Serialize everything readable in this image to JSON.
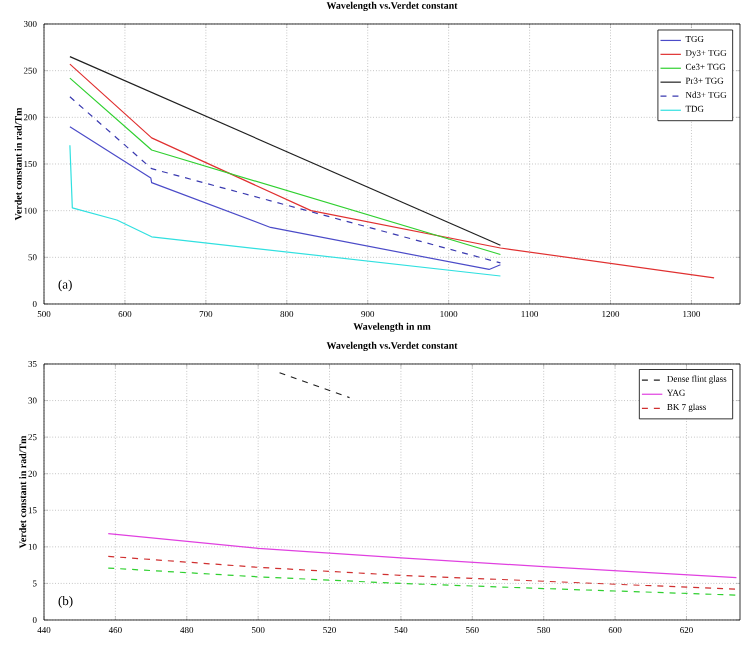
{
  "chart_data": [
    {
      "type": "line",
      "title": "Wavelength vs.Verdet constant",
      "xlabel": "Wavelength in nm",
      "ylabel": "Verdet constant in rad/Tm",
      "annotations": [
        "(a)"
      ],
      "xlim": [
        500,
        1360
      ],
      "ylim": [
        0,
        300
      ],
      "xticks": [
        500,
        600,
        700,
        800,
        900,
        1000,
        1100,
        1200,
        1300
      ],
      "yticks": [
        0,
        50,
        100,
        150,
        200,
        250,
        300
      ],
      "grid": true,
      "legend": "top right",
      "marker": "none",
      "series": [
        {
          "name": "TGG",
          "color": "#4b4bc8",
          "line_style": "solid",
          "x": [
            532,
            632,
            633,
            780,
            1050,
            1064
          ],
          "values": [
            190,
            135,
            130,
            82,
            37,
            42
          ]
        },
        {
          "name": "Dy3+ TGG",
          "color": "#e03030",
          "line_style": "solid",
          "x": [
            532,
            633,
            830,
            1064,
            1328
          ],
          "values": [
            257,
            178,
            100,
            60,
            28
          ]
        },
        {
          "name": "Ce3+ TGG",
          "color": "#30d030",
          "line_style": "solid",
          "x": [
            532,
            633,
            1064
          ],
          "values": [
            242,
            165,
            53
          ]
        },
        {
          "name": "Pr3+ TGG",
          "color": "#202020",
          "line_style": "solid",
          "x": [
            532,
            1064
          ],
          "values": [
            265,
            63
          ]
        },
        {
          "name": "Nd3+ TGG",
          "color": "#3a3ab0",
          "line_style": "dashed",
          "x": [
            532,
            633,
            1064
          ],
          "values": [
            222,
            145,
            44
          ]
        },
        {
          "name": "TDG",
          "color": "#30e0e0",
          "line_style": "solid",
          "x": [
            532,
            535,
            590,
            633,
            1064
          ],
          "values": [
            170,
            103,
            90,
            72,
            30
          ]
        }
      ]
    },
    {
      "type": "line",
      "title": "Wavelength vs.Verdet constant",
      "ylabel": "Verdet constant in rad/Tm",
      "annotations": [
        "(b)"
      ],
      "xlim": [
        440,
        635
      ],
      "ylim": [
        0,
        35
      ],
      "xticks": [
        440,
        460,
        480,
        500,
        520,
        540,
        560,
        580,
        600,
        620
      ],
      "yticks": [
        0,
        5,
        10,
        15,
        20,
        25,
        30,
        35
      ],
      "grid": true,
      "legend": "top right",
      "marker": "none",
      "series": [
        {
          "name": "Dense flint glass",
          "color": "#202020",
          "line_style": "dashed",
          "x": [
            506,
            525.6
          ],
          "values": [
            33.8,
            30.4
          ]
        },
        {
          "name": "YAG",
          "color": "#e040e0",
          "line_style": "solid",
          "x": [
            458,
            500,
            540,
            580,
            634
          ],
          "values": [
            11.8,
            9.8,
            8.5,
            7.3,
            5.8
          ]
        },
        {
          "name": "BK 7 glass",
          "color": "#d03030",
          "line_style": "dashed",
          "x": [
            458,
            500,
            540,
            580,
            634
          ],
          "values": [
            8.7,
            7.2,
            6.1,
            5.3,
            4.2
          ]
        },
        {
          "color": "#30d030",
          "line_style": "dashed",
          "x": [
            458,
            500,
            540,
            580,
            634
          ],
          "values": [
            7.1,
            5.9,
            5.0,
            4.3,
            3.4
          ]
        }
      ]
    }
  ]
}
